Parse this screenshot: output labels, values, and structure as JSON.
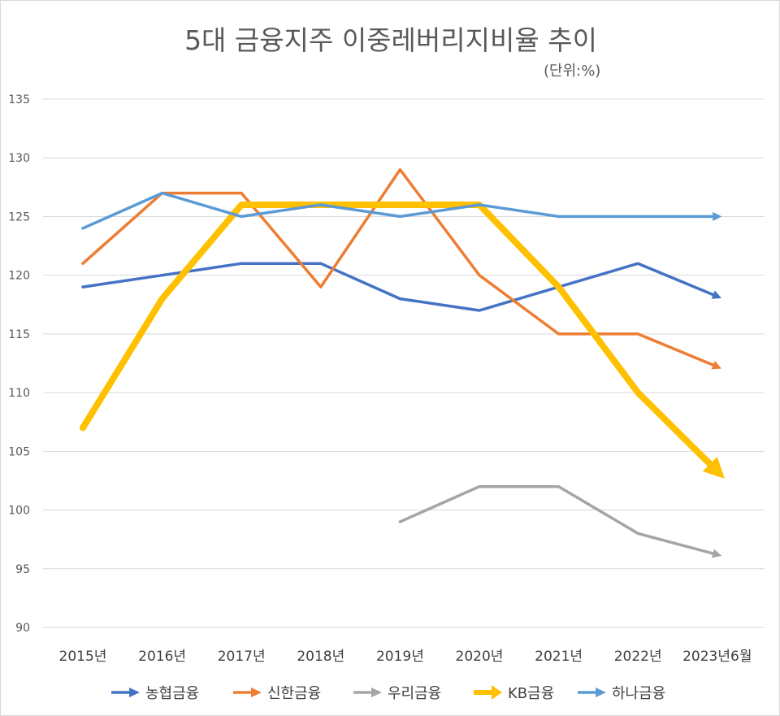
{
  "chart_data": {
    "type": "line",
    "title": "5대 금융지주 이중레버리지비율 추이",
    "unit_label": "(단위:%)",
    "categories": [
      "2015년",
      "2016년",
      "2017년",
      "2018년",
      "2019년",
      "2020년",
      "2021년",
      "2022년",
      "2023년6월"
    ],
    "ylim": [
      90,
      135
    ],
    "yticks": [
      90,
      95,
      100,
      105,
      110,
      115,
      120,
      125,
      130,
      135
    ],
    "grid": true,
    "legend_position": "bottom",
    "series": [
      {
        "name": "농협금융",
        "color": "#4472c4",
        "width": 3.5,
        "values": [
          119,
          120,
          121,
          121,
          118,
          117,
          119,
          121,
          118.2
        ]
      },
      {
        "name": "신한금융",
        "color": "#ed7d31",
        "width": 3.5,
        "values": [
          121,
          127,
          127,
          119,
          129,
          120,
          115,
          115,
          112.2
        ]
      },
      {
        "name": "우리금융",
        "color": "#a5a5a5",
        "width": 3.5,
        "values": [
          null,
          null,
          null,
          null,
          99,
          102,
          102,
          98,
          96.2
        ]
      },
      {
        "name": "KB금융",
        "color": "#ffc000",
        "width": 8,
        "values": [
          107,
          118,
          126,
          126,
          126,
          126,
          119,
          110,
          103.3
        ]
      },
      {
        "name": "하나금융",
        "color": "#5b9bd5",
        "width": 3.5,
        "values": [
          124,
          127,
          125,
          126,
          125,
          126,
          125,
          125,
          125
        ]
      }
    ]
  }
}
